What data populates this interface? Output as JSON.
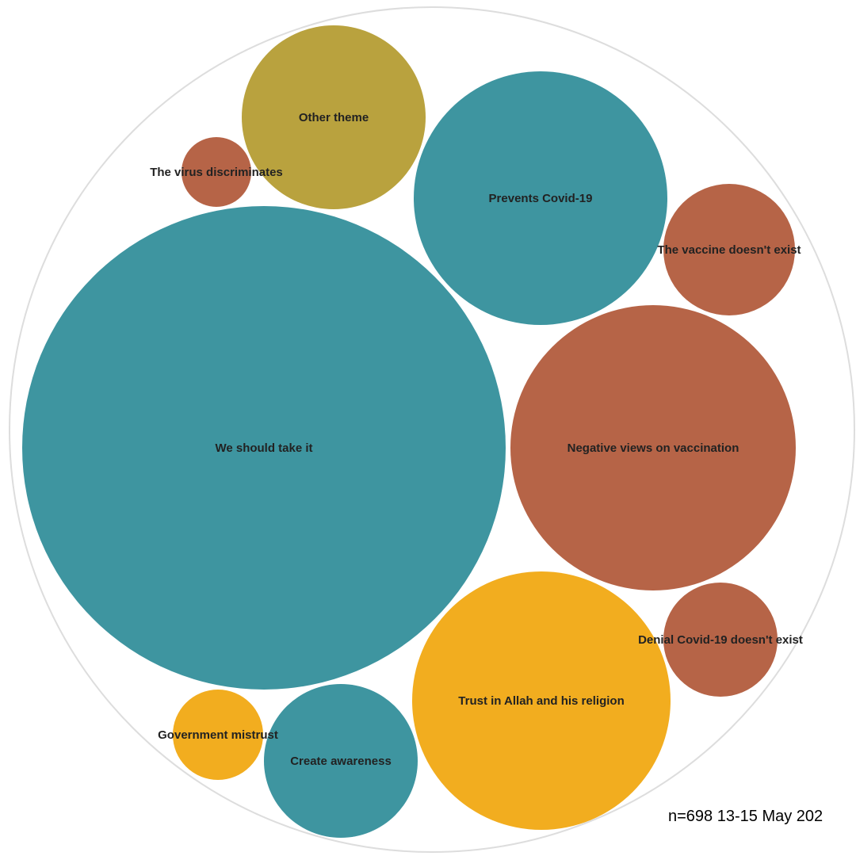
{
  "colors": {
    "teal": "#3e95a0",
    "rust": "#b66447",
    "olive": "#b9a23e",
    "gold": "#f2ad1f",
    "outline": "#dddddd",
    "label": "#222222"
  },
  "footnote": "n=698  13-15 May 202",
  "chart_data": {
    "type": "bubble",
    "title": "",
    "bubbles": [
      {
        "label": "We should take it",
        "color": "teal"
      },
      {
        "label": "Negative views on vaccination",
        "color": "rust"
      },
      {
        "label": "Trust in Allah and his religion",
        "color": "gold"
      },
      {
        "label": "Prevents Covid-19",
        "color": "teal"
      },
      {
        "label": "Other theme",
        "color": "olive"
      },
      {
        "label": "Create awareness",
        "color": "teal"
      },
      {
        "label": "The vaccine doesn't exist",
        "color": "rust"
      },
      {
        "label": "Denial Covid-19 doesn't exist",
        "color": "rust"
      },
      {
        "label": "Government mistrust",
        "color": "gold"
      },
      {
        "label": "The virus discriminates",
        "color": "rust"
      }
    ]
  }
}
